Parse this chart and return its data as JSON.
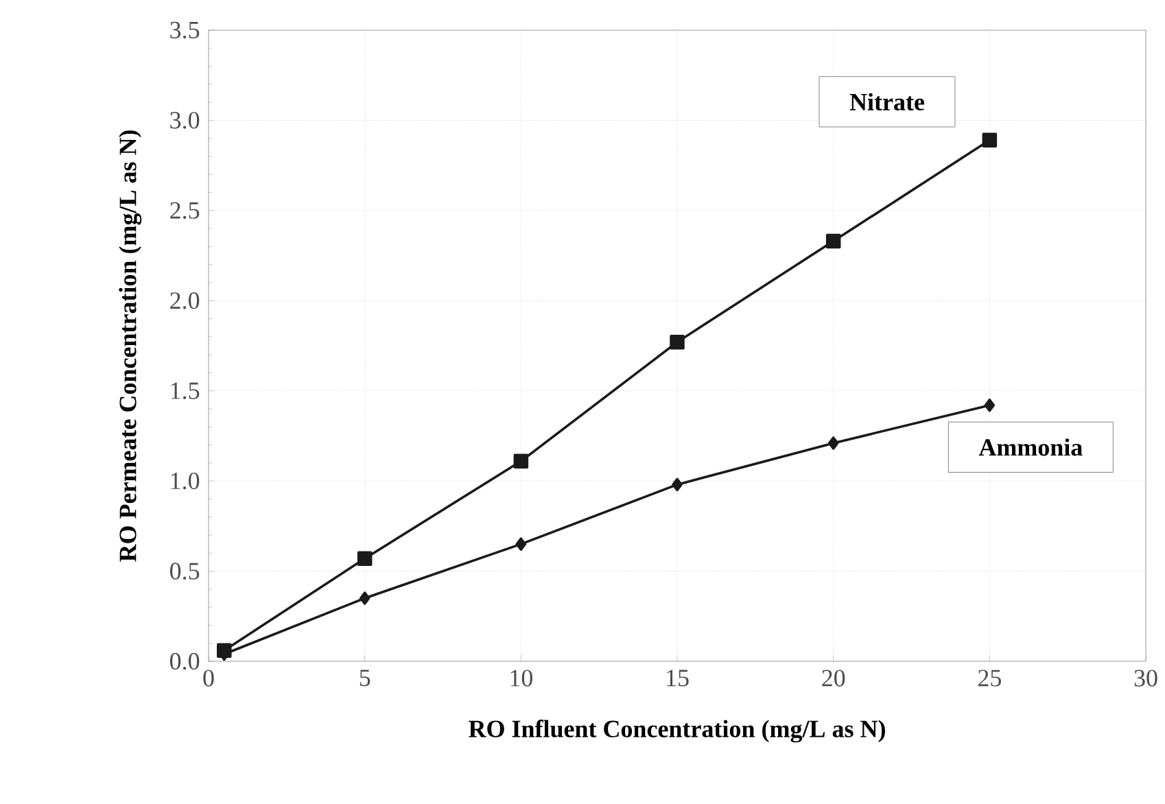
{
  "chart_data": {
    "type": "line",
    "xlabel": "RO Influent Concentration (mg/L as N)",
    "ylabel": "RO Permeate Concentration (mg/L as N)",
    "xlim": [
      0,
      30
    ],
    "xticks": [
      0,
      5,
      10,
      15,
      20,
      25,
      30
    ],
    "ylim": [
      0,
      3.5
    ],
    "yticks": [
      {
        "value": 0,
        "label": "0.0"
      },
      {
        "value": 0.5,
        "label": "0.5"
      },
      {
        "value": 1,
        "label": "1.0"
      },
      {
        "value": 1.5,
        "label": "1.5"
      },
      {
        "value": 2,
        "label": "2.0"
      },
      {
        "value": 2.5,
        "label": "2.5"
      },
      {
        "value": 3,
        "label": "3.0"
      },
      {
        "value": 3.5,
        "label": "3.5"
      }
    ],
    "grid": true,
    "legend": false,
    "line_style": "solid",
    "series": [
      {
        "name": "Nitrate",
        "color": "#1a1a1a",
        "marker": "square",
        "x": [
          0.5,
          5,
          10,
          15,
          20,
          25
        ],
        "values": [
          0.06,
          0.57,
          1.11,
          1.77,
          2.33,
          2.89
        ]
      },
      {
        "name": "Ammonia",
        "color": "#1a1a1a",
        "marker": "diamond",
        "x": [
          0.5,
          5,
          10,
          15,
          20,
          25
        ],
        "values": [
          0.04,
          0.35,
          0.65,
          0.98,
          1.21,
          1.42
        ]
      }
    ]
  }
}
